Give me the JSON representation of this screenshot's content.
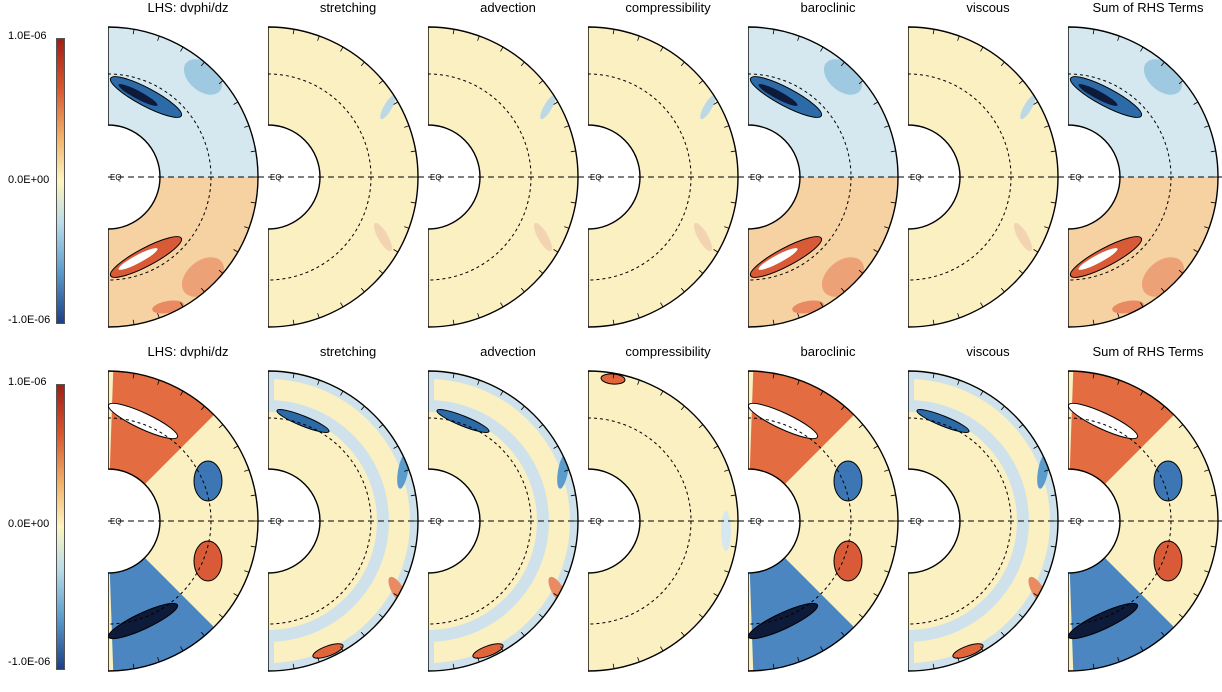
{
  "colorbar": {
    "max_label": "1.0E-06",
    "mid_label": "0.0E+00",
    "min_label": "-1.0E-06",
    "colors": [
      "#a01f16",
      "#fdf5c0",
      "#1f3f86"
    ]
  },
  "equator_label": "EQ",
  "rows": [
    {
      "panels": [
        {
          "title": "LHS: dvphi/dz",
          "pattern": "strong-dipole"
        },
        {
          "title": "stretching",
          "pattern": "weak"
        },
        {
          "title": "advection",
          "pattern": "weak"
        },
        {
          "title": "compressibility",
          "pattern": "weak"
        },
        {
          "title": "baroclinic",
          "pattern": "strong-dipole"
        },
        {
          "title": "viscous",
          "pattern": "weak"
        },
        {
          "title": "Sum of RHS Terms",
          "pattern": "strong-dipole"
        }
      ]
    },
    {
      "panels": [
        {
          "title": "LHS: dvphi/dz",
          "pattern": "mixed"
        },
        {
          "title": "stretching",
          "pattern": "banded"
        },
        {
          "title": "advection",
          "pattern": "banded"
        },
        {
          "title": "compressibility",
          "pattern": "weak-banded"
        },
        {
          "title": "baroclinic",
          "pattern": "mixed"
        },
        {
          "title": "viscous",
          "pattern": "banded"
        },
        {
          "title": "Sum of RHS Terms",
          "pattern": "mixed"
        }
      ]
    }
  ]
}
